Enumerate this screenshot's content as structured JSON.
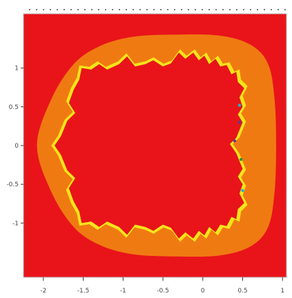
{
  "chart_data": {
    "type": "heatmap",
    "title": "",
    "xlabel": "",
    "ylabel": "",
    "xlim": [
      -2.25,
      1.05
    ],
    "ylim": [
      -1.7,
      1.7
    ],
    "x_ticks": [
      -2,
      -1.5,
      -1,
      -0.5,
      0,
      0.5,
      1
    ],
    "y_ticks": [
      -1,
      -0.5,
      0,
      0.5,
      1
    ],
    "x_tick_labels": [
      "-2",
      "-1.5",
      "-1",
      "-0.5",
      "0",
      "0.5",
      "1"
    ],
    "y_tick_labels": [
      "-1",
      "-0.5",
      "0",
      "0.5",
      "1"
    ],
    "regions": [
      {
        "name": "background",
        "color": "#e8141a"
      },
      {
        "name": "outer-band",
        "color": "#f07a12"
      },
      {
        "name": "boundary-band",
        "color": "#f5e41a"
      },
      {
        "name": "interior",
        "color": "#e8141a"
      }
    ],
    "accent_colors": [
      "#22b4c8",
      "#5a3c8c",
      "#1e9c3c"
    ],
    "grid": false
  }
}
